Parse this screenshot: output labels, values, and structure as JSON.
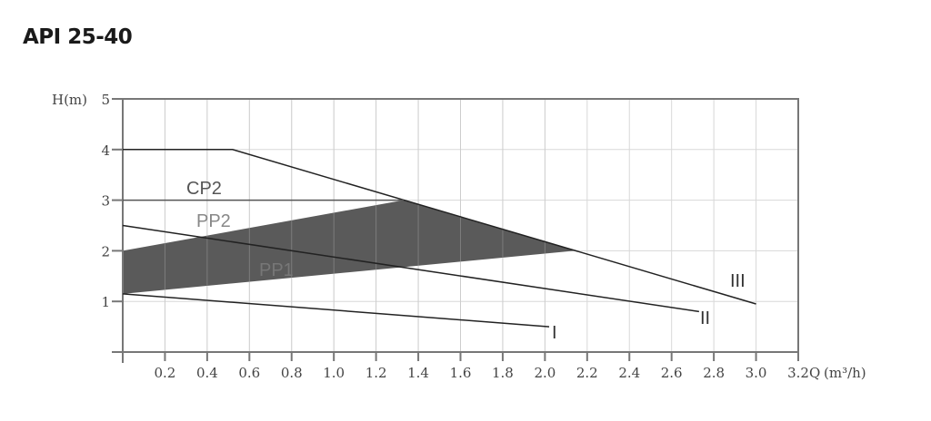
{
  "title": "API 25-40",
  "chart_data": {
    "type": "line",
    "title": "API 25-40",
    "xlabel": "Q",
    "xunit": "(m³/h)",
    "ylabel": "H(m)",
    "xlim": [
      0,
      3.2
    ],
    "ylim": [
      0,
      5
    ],
    "xticks": [
      "0.2",
      "0.4",
      "0.6",
      "0.8",
      "1.0",
      "1.2",
      "1.4",
      "1.6",
      "1.8",
      "2.0",
      "2.2",
      "2.4",
      "2.6",
      "2.8",
      "3.0",
      "3.2"
    ],
    "yticks": [
      "1",
      "2",
      "3",
      "4",
      "5"
    ],
    "grid": true,
    "series": [
      {
        "name": "III",
        "points": [
          [
            0,
            4
          ],
          [
            0.52,
            4
          ],
          [
            3.0,
            0.95
          ]
        ]
      },
      {
        "name": "II",
        "points": [
          [
            0,
            2.5
          ],
          [
            2.73,
            0.8
          ]
        ]
      },
      {
        "name": "I",
        "points": [
          [
            0,
            1.15
          ],
          [
            2.02,
            0.5
          ]
        ]
      },
      {
        "name": "CP2",
        "points": [
          [
            0,
            3
          ],
          [
            1.33,
            3
          ]
        ]
      }
    ],
    "shaded_region": {
      "labels": [
        "PP2",
        "PP1"
      ],
      "points": [
        [
          0,
          2
        ],
        [
          1.33,
          3
        ],
        [
          2.14,
          2
        ],
        [
          0,
          1.15
        ]
      ],
      "color": "#5a5a5a"
    },
    "colors": {
      "grid": "#d8d8d8",
      "axis": "#777777",
      "line": "#222222"
    }
  }
}
